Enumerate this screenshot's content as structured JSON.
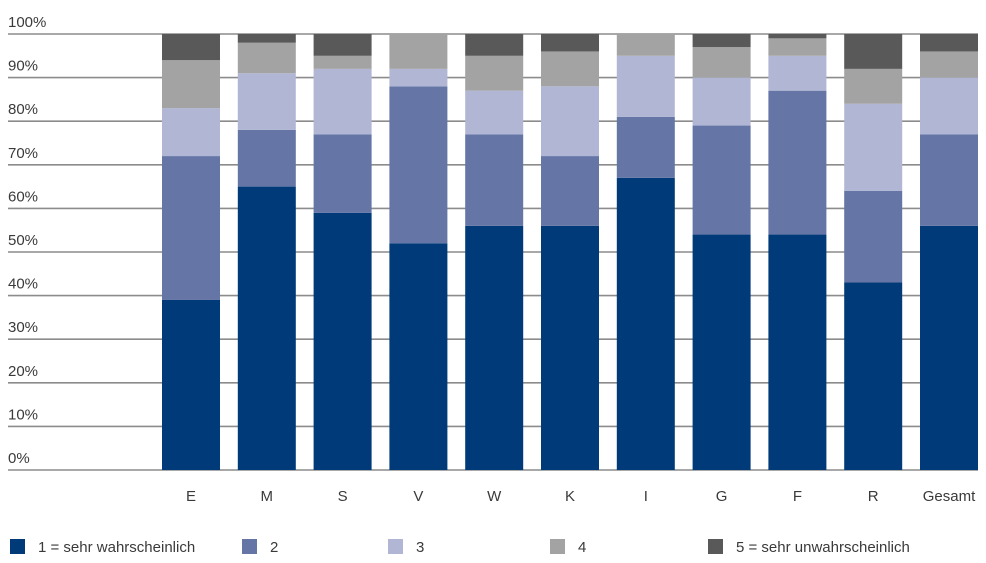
{
  "chart_data": {
    "type": "bar",
    "stacked": true,
    "categories": [
      "E",
      "M",
      "S",
      "V",
      "W",
      "K",
      "I",
      "G",
      "F",
      "R",
      "Gesamt"
    ],
    "series": [
      {
        "name": "1 = sehr wahrscheinlich",
        "color": "#003a78",
        "values": [
          39,
          65,
          59,
          52,
          56,
          56,
          67,
          54,
          54,
          43,
          56
        ]
      },
      {
        "name": "2",
        "color": "#6475a6",
        "values": [
          33,
          13,
          18,
          36,
          21,
          16,
          14,
          25,
          33,
          21,
          21
        ]
      },
      {
        "name": "3",
        "color": "#b0b6d3",
        "values": [
          11,
          13,
          15,
          4,
          10,
          16,
          14,
          11,
          8,
          20,
          13
        ]
      },
      {
        "name": "4",
        "color": "#a3a3a3",
        "values": [
          11,
          7,
          3,
          8,
          8,
          8,
          5,
          7,
          4,
          8,
          6
        ]
      },
      {
        "name": "5 = sehr unwahrscheinlich",
        "color": "#595959",
        "values": [
          6,
          2,
          5,
          0,
          5,
          4,
          0,
          3,
          1,
          8,
          4
        ]
      }
    ],
    "yticks": [
      "0%",
      "10%",
      "20%",
      "30%",
      "40%",
      "50%",
      "60%",
      "70%",
      "80%",
      "90%",
      "100%"
    ],
    "ylim": [
      0,
      100
    ],
    "grid": true,
    "legend_position": "bottom",
    "title": "",
    "xlabel": "",
    "ylabel": ""
  }
}
